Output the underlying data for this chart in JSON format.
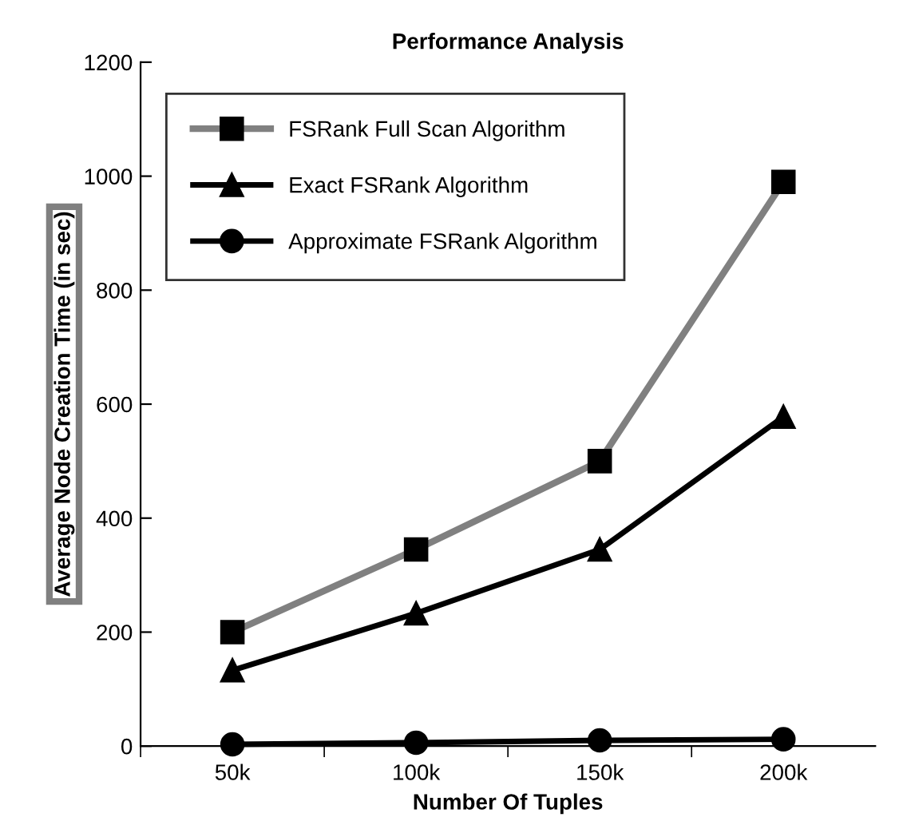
{
  "chart_data": {
    "type": "line",
    "title": "Performance Analysis",
    "xlabel": "Number Of Tuples",
    "ylabel": "Average Node Creation Time (in sec)",
    "categories": [
      "50k",
      "100k",
      "150k",
      "200k"
    ],
    "series": [
      {
        "name": "FSRank Full Scan Algorithm",
        "color": "#808080",
        "marker": "square",
        "values": [
          200,
          345,
          500,
          990
        ]
      },
      {
        "name": "Exact FSRank Algorithm",
        "color": "#000000",
        "marker": "triangle",
        "values": [
          133,
          233,
          345,
          578
        ]
      },
      {
        "name": "Approximate FSRank Algorithm",
        "color": "#000000",
        "marker": "circle",
        "values": [
          3,
          6,
          10,
          12
        ]
      }
    ],
    "ylim": [
      0,
      1200
    ],
    "yticks": [
      0,
      200,
      400,
      600,
      800,
      1000,
      1200
    ],
    "grid": false,
    "legend": "top left",
    "line_style": "solid"
  }
}
